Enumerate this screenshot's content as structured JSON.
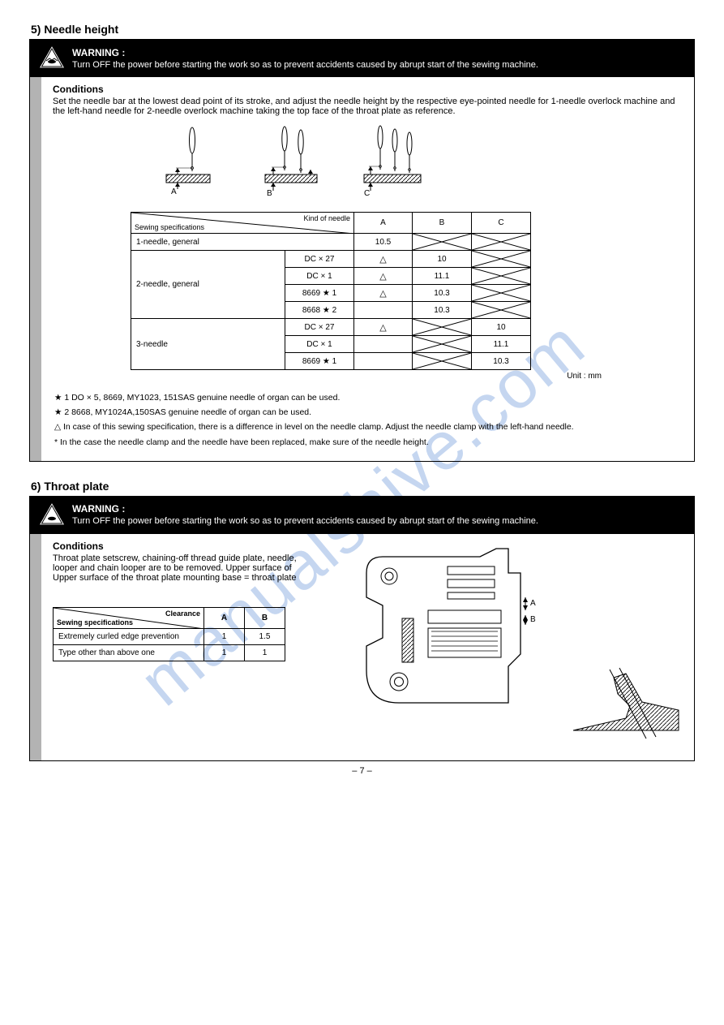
{
  "watermark": "manualshive.com",
  "page_number": "– 7 –",
  "section1": {
    "number": "5)",
    "title": "Needle height",
    "warning": {
      "heading": "WARNING :",
      "body": "Turn OFF the power before starting the work so as to prevent accidents caused by abrupt start of the sewing machine."
    },
    "conditions_label": "Conditions",
    "conditions_text": "Set the needle bar at the lowest dead point of its stroke, and adjust the needle height by the respective eye-pointed needle for 1-needle overlock machine and the left-hand needle for 2-needle overlock machine taking the top face of the throat plate as reference.",
    "fig_labels": {
      "A": "A",
      "B": "B",
      "C": "C"
    },
    "table": {
      "header_top": "Kind of needle",
      "header_left": "Sewing specifications",
      "cols": [
        "A",
        "B",
        "C"
      ],
      "rows": [
        {
          "kind": "1-needle, general",
          "sub": "",
          "vals": [
            "10.5",
            "x",
            "x"
          ]
        },
        {
          "kind_rowspan": 4,
          "kind": "2-needle, general",
          "sub": "DC × 27",
          "vals": [
            "tri",
            "10",
            "x"
          ]
        },
        {
          "sub": "DC × 1",
          "vals": [
            "tri",
            "11.1",
            "x"
          ]
        },
        {
          "sub": "8669 ★ 1",
          "vals": [
            "tri",
            "10.3",
            "x"
          ]
        },
        {
          "sub": "8668 ★ 2",
          "vals": [
            "",
            "10.3",
            "x"
          ]
        },
        {
          "kind_rowspan": 3,
          "kind": "3-needle",
          "sub": "DC × 27",
          "vals": [
            "tri",
            "x",
            "10"
          ]
        },
        {
          "sub": "DC × 1",
          "vals": [
            "",
            "x",
            "11.1"
          ]
        },
        {
          "sub": "8669 ★ 1",
          "vals": [
            "",
            "x",
            "10.3"
          ]
        }
      ]
    },
    "unit_note": "Unit : mm",
    "hints": [
      "★ 1  DO × 5, 8669, MY1023, 151SAS genuine needle of organ can be used.",
      "★ 2  8668, MY1024A,150SAS genuine needle of organ can be used.",
      "△    In case of this sewing specification, there is a difference in level on the needle clamp. Adjust the needle clamp with the left-hand needle.",
      "*     In the case the needle clamp and the needle have been replaced, make sure of the needle height."
    ]
  },
  "section2": {
    "number": "6)",
    "title": "Throat plate",
    "warning": {
      "heading": "WARNING :",
      "body": "Turn OFF the power before starting the work so as to prevent accidents caused by abrupt start of the sewing machine."
    },
    "conditions_label": "Conditions",
    "conditions_text": "Throat plate setscrew, chaining-off thread guide plate, needle, looper and chain looper are to be removed. Upper surface of Upper surface of the throat plate mounting base = throat plate",
    "mini_table": {
      "header_top": "Clearance",
      "header_left": "Sewing specifications",
      "rows": [
        [
          "Extremely curled edge prevention",
          "1",
          "1.5"
        ],
        [
          "Type other than above one",
          "1",
          "1"
        ]
      ],
      "cols": [
        "A",
        "B"
      ]
    },
    "dim_A": "A",
    "dim_B": "B"
  }
}
